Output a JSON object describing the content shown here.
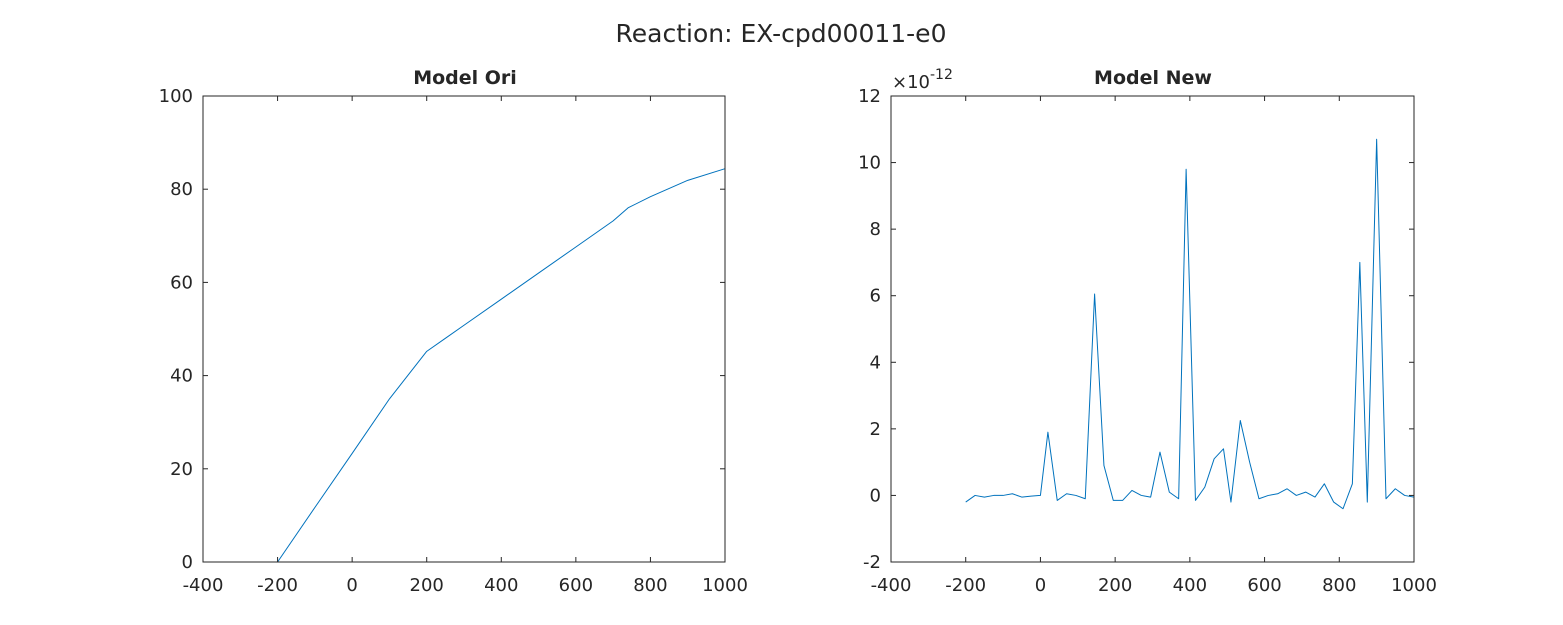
{
  "figure_title": "Reaction: EX-cpd00011-e0",
  "chart_data": [
    {
      "type": "line",
      "title": "Model Ori",
      "xlabel": "",
      "ylabel": "",
      "xlim": [
        -400,
        1000
      ],
      "ylim": [
        0,
        100
      ],
      "xticks": [
        -400,
        -200,
        0,
        200,
        400,
        600,
        800,
        1000
      ],
      "yticks": [
        0,
        20,
        40,
        60,
        80,
        100
      ],
      "xtick_labels": [
        "-400",
        "-200",
        "0",
        "200",
        "400",
        "600",
        "800",
        "1000"
      ],
      "ytick_labels": [
        "0",
        "20",
        "40",
        "60",
        "80",
        "100"
      ],
      "color": "#0072bd",
      "grid": false,
      "series": [
        {
          "x": [
            -200,
            -100,
            0,
            100,
            200,
            250,
            300,
            400,
            500,
            600,
            700,
            740,
            800,
            900,
            1000
          ],
          "y": [
            0,
            11.7,
            23.3,
            35.0,
            45.2,
            48.0,
            50.8,
            56.4,
            62.0,
            67.6,
            73.2,
            76.0,
            78.4,
            81.9,
            84.4
          ]
        }
      ]
    },
    {
      "type": "line",
      "title": "Model New",
      "xlabel": "",
      "ylabel": "",
      "xlim": [
        -400,
        1000
      ],
      "ylim": [
        -2,
        12
      ],
      "y_exponent_base": "×10",
      "y_exponent_power": "-12",
      "xticks": [
        -400,
        -200,
        0,
        200,
        400,
        600,
        800,
        1000
      ],
      "yticks": [
        -2,
        0,
        2,
        4,
        6,
        8,
        10,
        12
      ],
      "xtick_labels": [
        "-400",
        "-200",
        "0",
        "200",
        "400",
        "600",
        "800",
        "1000"
      ],
      "ytick_labels": [
        "-2",
        "0",
        "2",
        "4",
        "6",
        "8",
        "10",
        "12"
      ],
      "color": "#0072bd",
      "grid": false,
      "series": [
        {
          "x": [
            -200,
            -175,
            -150,
            -125,
            -100,
            -75,
            -50,
            -25,
            0,
            20,
            45,
            70,
            95,
            120,
            145,
            170,
            195,
            220,
            245,
            270,
            295,
            320,
            345,
            370,
            390,
            415,
            440,
            465,
            490,
            510,
            535,
            560,
            585,
            610,
            635,
            660,
            685,
            710,
            735,
            760,
            785,
            810,
            835,
            855,
            875,
            900,
            925,
            950,
            975,
            1000
          ],
          "y": [
            -0.2,
            0.0,
            -0.05,
            0.0,
            0.0,
            0.05,
            -0.05,
            -0.02,
            0.0,
            1.9,
            -0.15,
            0.05,
            0.0,
            -0.1,
            6.05,
            0.9,
            -0.15,
            -0.15,
            0.15,
            0.0,
            -0.05,
            1.3,
            0.1,
            -0.1,
            9.8,
            -0.15,
            0.25,
            1.1,
            1.4,
            -0.2,
            2.25,
            1.0,
            -0.1,
            0.0,
            0.05,
            0.2,
            0.0,
            0.1,
            -0.05,
            0.35,
            -0.2,
            -0.4,
            0.35,
            7.0,
            -0.2,
            10.7,
            -0.1,
            0.2,
            0.0,
            -0.05
          ]
        }
      ]
    }
  ]
}
